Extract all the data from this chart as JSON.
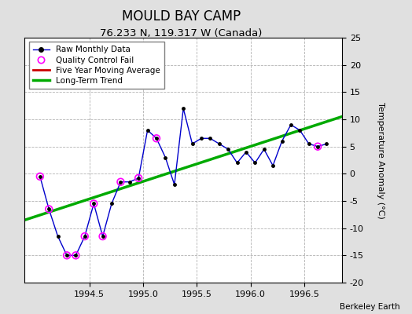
{
  "title": "MOULD BAY CAMP",
  "subtitle": "76.233 N, 119.317 W (Canada)",
  "ylabel": "Temperature Anomaly (°C)",
  "credit": "Berkeley Earth",
  "xlim": [
    1993.9,
    1996.85
  ],
  "ylim": [
    -20,
    25
  ],
  "yticks": [
    -20,
    -15,
    -10,
    -5,
    0,
    5,
    10,
    15,
    20,
    25
  ],
  "xticks": [
    1994.5,
    1995.0,
    1995.5,
    1996.0,
    1996.5
  ],
  "raw_x": [
    1994.042,
    1994.125,
    1994.208,
    1994.292,
    1994.375,
    1994.458,
    1994.542,
    1994.625,
    1994.708,
    1994.792,
    1994.875,
    1994.958,
    1995.042,
    1995.125,
    1995.208,
    1995.292,
    1995.375,
    1995.458,
    1995.542,
    1995.625,
    1995.708,
    1995.792,
    1995.875,
    1995.958,
    1996.042,
    1996.125,
    1996.208,
    1996.292,
    1996.375,
    1996.458,
    1996.542,
    1996.625,
    1996.708
  ],
  "raw_y": [
    -0.5,
    -6.5,
    -11.5,
    -15.0,
    -15.0,
    -11.5,
    -5.5,
    -11.5,
    -5.5,
    -1.5,
    -1.5,
    -0.8,
    8.0,
    6.5,
    3.0,
    -2.0,
    12.0,
    5.5,
    6.5,
    6.5,
    5.5,
    4.5,
    2.0,
    4.0,
    2.0,
    4.5,
    1.5,
    6.0,
    9.0,
    8.0,
    5.5,
    5.0,
    5.5
  ],
  "qc_fail_x": [
    1994.042,
    1994.125,
    1994.292,
    1994.375,
    1994.458,
    1994.542,
    1994.625,
    1994.792,
    1994.958,
    1995.125,
    1996.625
  ],
  "qc_fail_y": [
    -0.5,
    -6.5,
    -15.0,
    -15.0,
    -11.5,
    -5.5,
    -11.5,
    -1.5,
    -0.8,
    6.5,
    5.0
  ],
  "trend_x": [
    1993.9,
    1996.85
  ],
  "trend_y": [
    -8.5,
    10.5
  ],
  "raw_color": "#0000cc",
  "raw_marker_color": "#000000",
  "qc_color": "#ff00ff",
  "trend_color": "#00aa00",
  "moving_avg_color": "#cc0000",
  "background_color": "#e0e0e0",
  "plot_bg_color": "#ffffff",
  "grid_color": "#aaaaaa",
  "title_fontsize": 12,
  "subtitle_fontsize": 9.5,
  "tick_fontsize": 8,
  "legend_fontsize": 7.5,
  "credit_fontsize": 7.5
}
